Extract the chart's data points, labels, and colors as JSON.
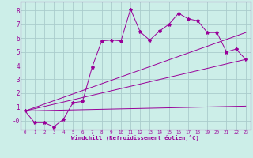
{
  "xlabel": "Windchill (Refroidissement éolien,°C)",
  "background_color": "#cceee8",
  "grid_color": "#aacccc",
  "line_color": "#990099",
  "xlim": [
    -0.5,
    23.5
  ],
  "ylim": [
    -0.65,
    8.65
  ],
  "xticks": [
    0,
    1,
    2,
    3,
    4,
    5,
    6,
    7,
    8,
    9,
    10,
    11,
    12,
    13,
    14,
    15,
    16,
    17,
    18,
    19,
    20,
    21,
    22,
    23
  ],
  "yticks": [
    0,
    1,
    2,
    3,
    4,
    5,
    6,
    7,
    8
  ],
  "ytick_labels": [
    "-0",
    "1",
    "2",
    "3",
    "4",
    "5",
    "6",
    "7",
    "8"
  ],
  "line1_x": [
    0,
    1,
    2,
    3,
    4,
    5,
    6,
    7,
    8,
    9,
    10,
    11,
    12,
    13,
    14,
    15,
    16,
    17,
    18,
    19,
    20,
    21,
    22,
    23
  ],
  "line1_y": [
    0.7,
    -0.15,
    -0.15,
    -0.45,
    0.1,
    1.3,
    1.4,
    3.9,
    5.8,
    5.85,
    5.8,
    8.1,
    6.45,
    5.85,
    6.5,
    7.0,
    7.8,
    7.4,
    7.25,
    6.4,
    6.4,
    5.0,
    5.2,
    4.45
  ],
  "line2_x": [
    0,
    23
  ],
  "line2_y": [
    0.7,
    6.4
  ],
  "line3_x": [
    0,
    23
  ],
  "line3_y": [
    0.7,
    4.45
  ],
  "line4_x": [
    0,
    23
  ],
  "line4_y": [
    0.7,
    1.05
  ]
}
